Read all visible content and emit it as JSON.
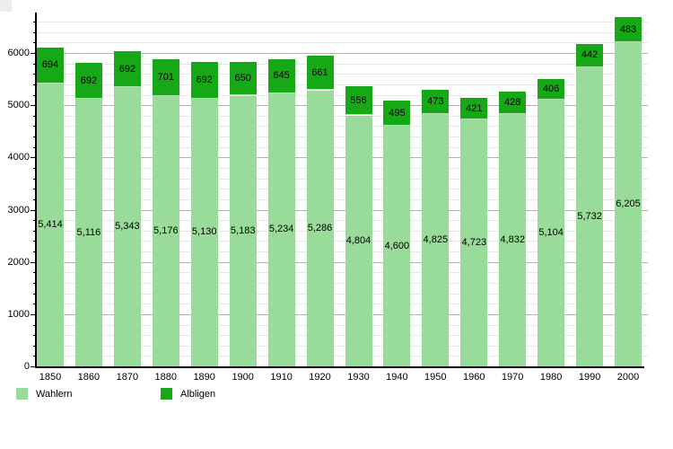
{
  "chart_data": {
    "type": "bar",
    "stacked": true,
    "title": "",
    "xlabel": "",
    "ylabel": "",
    "categories": [
      "1850",
      "1860",
      "1870",
      "1880",
      "1890",
      "1900",
      "1910",
      "1920",
      "1930",
      "1940",
      "1950",
      "1960",
      "1970",
      "1980",
      "1990",
      "2000"
    ],
    "series": [
      {
        "name": "Wahlern",
        "color": "#99DB99",
        "values": [
          5414,
          5116,
          5343,
          5176,
          5130,
          5183,
          5234,
          5286,
          4804,
          4600,
          4825,
          4723,
          4832,
          5104,
          5732,
          6205
        ],
        "value_labels": [
          "5,414",
          "5,116",
          "5,343",
          "5,176",
          "5,130",
          "5,183",
          "5,234",
          "5,286",
          "4,804",
          "4,600",
          "4,825",
          "4,723",
          "4,832",
          "5,104",
          "5,732",
          "6,205"
        ]
      },
      {
        "name": "Albligen",
        "color": "#17A817",
        "values": [
          694,
          692,
          692,
          701,
          692,
          650,
          645,
          661,
          556,
          495,
          473,
          421,
          428,
          406,
          442,
          483
        ],
        "value_labels": [
          "694",
          "692",
          "692",
          "701",
          "692",
          "650",
          "645",
          "661",
          "556",
          "495",
          "473",
          "421",
          "428",
          "406",
          "442",
          "483"
        ]
      }
    ],
    "ylim": [
      0,
      6770
    ],
    "ytick_values": [
      0,
      1000,
      2000,
      3000,
      4000,
      5000,
      6000
    ],
    "ytick_labels": [
      "0",
      "1000",
      "2000",
      "3000",
      "4000",
      "5000",
      "6000"
    ],
    "grid": {
      "minor_step": 200,
      "major_step": 1000,
      "minor_max": 6600,
      "minor_color": "#E8E8E8",
      "major_color": "#B2B2B2"
    },
    "legend_position": "bottom-left",
    "axis_color": "#000000",
    "background": "#FFFFFF",
    "label_color": "#000000"
  }
}
